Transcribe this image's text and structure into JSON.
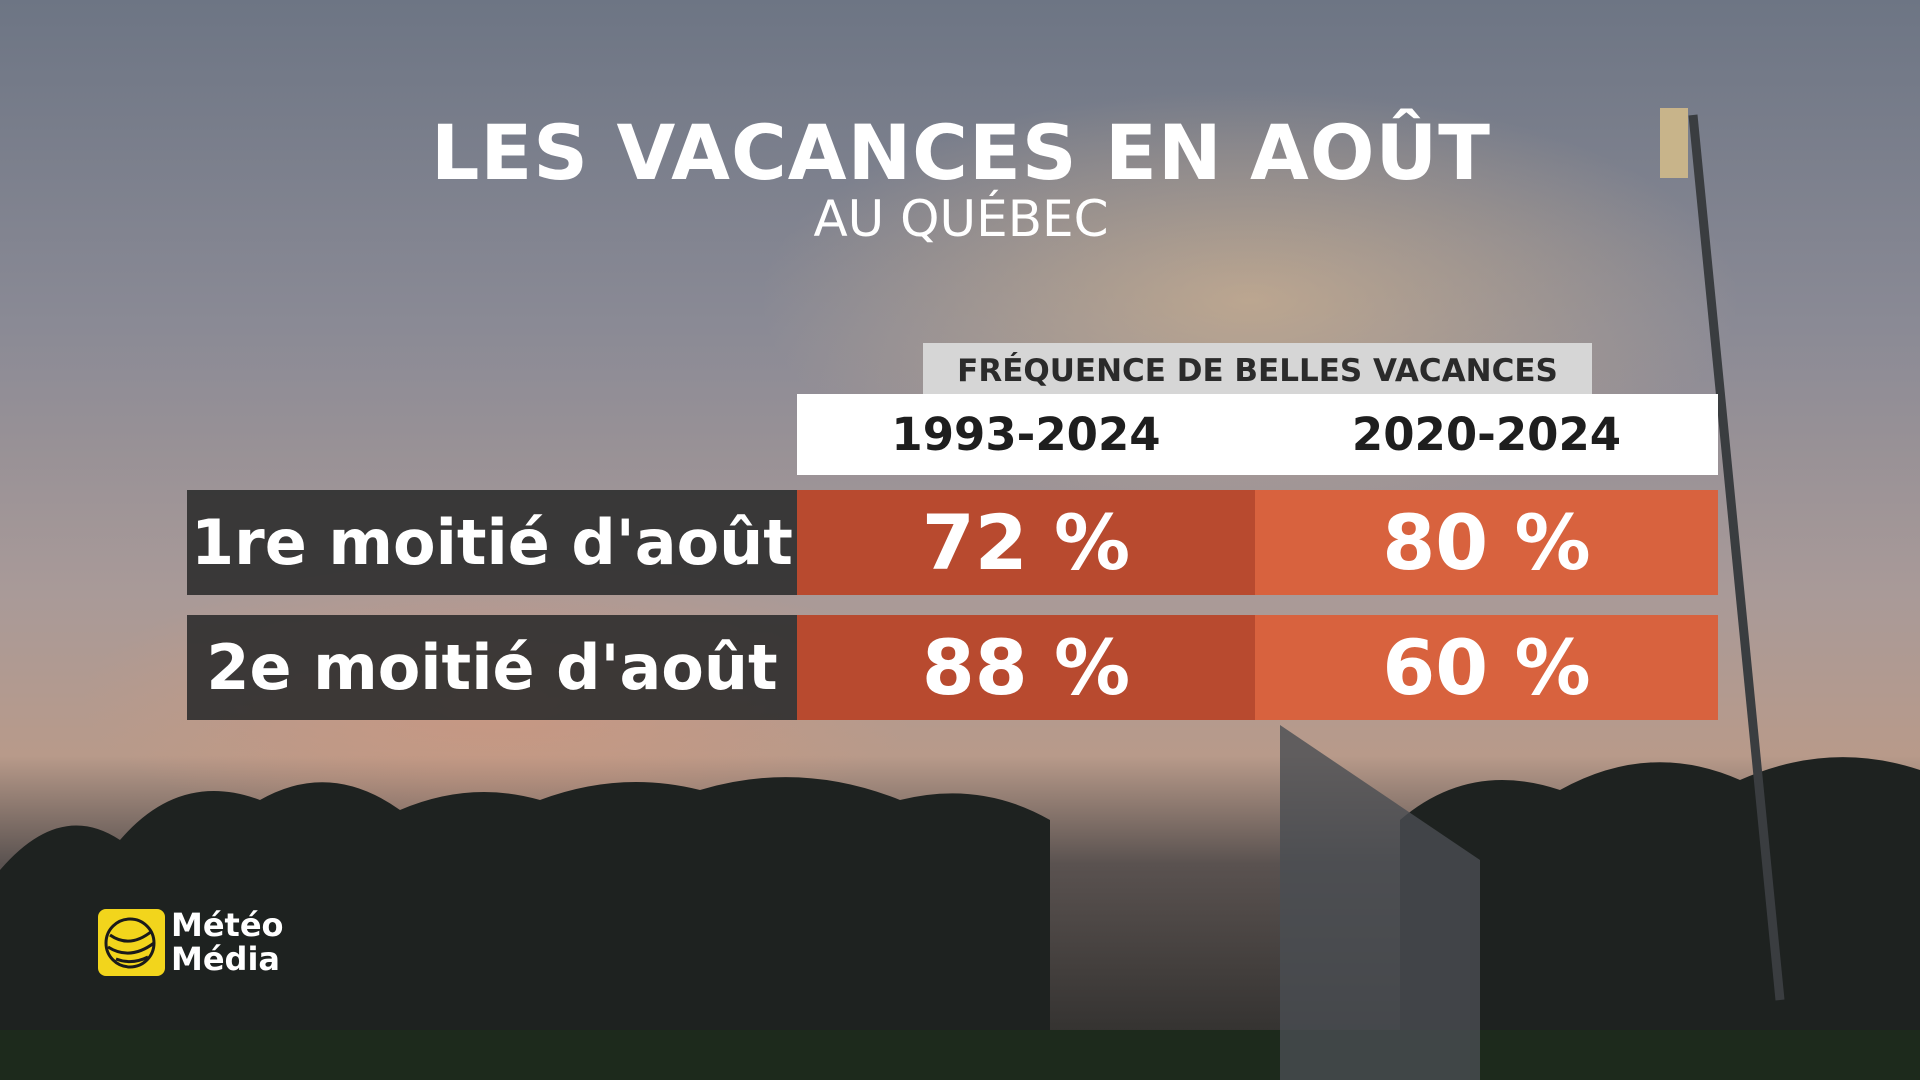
{
  "header": {
    "title": "LES VACANCES EN AOÛT",
    "subtitle": "AU QUÉBEC"
  },
  "table": {
    "caption": "FRÉQUENCE DE BELLES VACANCES",
    "columns": [
      "1993-2024",
      "2020-2024"
    ],
    "rows": [
      [
        "1re moitié d'août",
        "72 %",
        "80 %"
      ],
      [
        "2e moitié d'août",
        "88 %",
        "60 %"
      ]
    ]
  },
  "logo": {
    "line1": "Météo",
    "line2": "Média"
  }
}
